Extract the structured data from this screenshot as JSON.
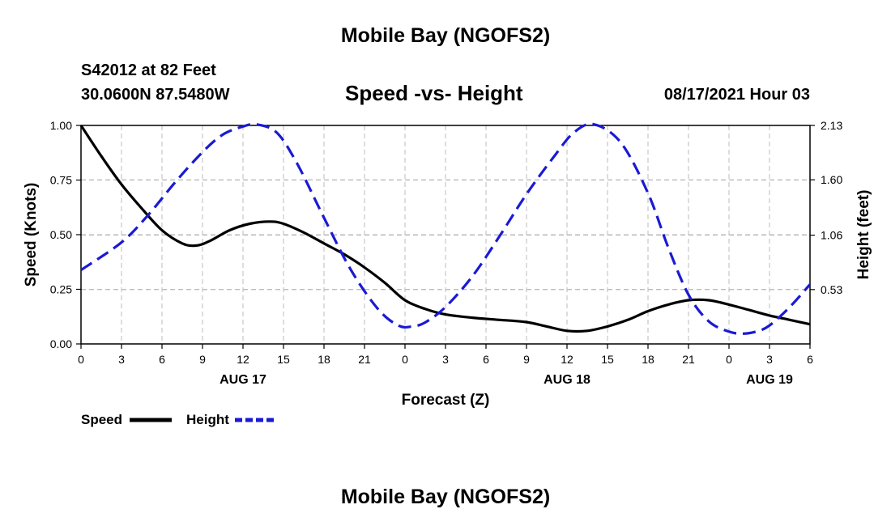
{
  "header": {
    "title": "Mobile Bay (NGOFS2)",
    "station": "S42012 at 82 Feet",
    "coords": "30.0600N  87.5480W",
    "subtitle": "Speed -vs- Height",
    "datetime": "08/17/2021 Hour 03"
  },
  "footer": {
    "title": "Mobile Bay (NGOFS2)"
  },
  "legend": {
    "speed_label": "Speed",
    "height_label": "Height"
  },
  "colors": {
    "speed": "#000000",
    "height": "#1a1ad4",
    "grid": "#bbbbbb"
  },
  "chart_data": {
    "type": "line",
    "title": "Speed -vs- Height",
    "xlabel": "Forecast (Z)",
    "ylabel": "Speed (Knots)",
    "y2label": "Height (feet)",
    "x_ticks": [
      0,
      3,
      6,
      9,
      12,
      15,
      18,
      21,
      24,
      27,
      30,
      33,
      36,
      39,
      42,
      45,
      48,
      51,
      54
    ],
    "x_tick_labels": [
      "0",
      "3",
      "6",
      "9",
      "12",
      "15",
      "18",
      "21",
      "0",
      "3",
      "6",
      "9",
      "12",
      "15",
      "18",
      "21",
      "0",
      "3",
      "6"
    ],
    "date_labels": [
      {
        "x": 12,
        "label": "AUG 17"
      },
      {
        "x": 36,
        "label": "AUG 18"
      },
      {
        "x": 51,
        "label": "AUG 19"
      }
    ],
    "xlim": [
      0,
      54
    ],
    "ylim": [
      0,
      1.0
    ],
    "y_ticks": [
      0,
      0.25,
      0.5,
      0.75,
      1.0
    ],
    "y_tick_labels": [
      "0.00",
      "0.25",
      "0.50",
      "0.75",
      "1.00"
    ],
    "y2lim": [
      0,
      2.13
    ],
    "y2_ticks": [
      0.53,
      1.06,
      1.6,
      2.13
    ],
    "y2_tick_labels": [
      "0.53",
      "1.06",
      "1.60",
      "2.13"
    ],
    "grid": true,
    "series": [
      {
        "name": "Speed",
        "axis": "left",
        "style": "solid",
        "x": [
          0,
          1.5,
          3,
          4.5,
          6,
          7.5,
          8.5,
          9.5,
          11,
          12.5,
          14,
          15,
          16.5,
          18,
          19.5,
          21,
          22.5,
          24,
          25.5,
          27,
          29,
          31,
          33,
          34.5,
          36,
          37.5,
          39,
          40.5,
          42,
          43.5,
          45,
          46.5,
          48,
          49.5,
          51,
          52.5,
          54
        ],
        "y": [
          1.0,
          0.86,
          0.73,
          0.62,
          0.52,
          0.46,
          0.45,
          0.47,
          0.52,
          0.55,
          0.56,
          0.55,
          0.51,
          0.46,
          0.41,
          0.35,
          0.28,
          0.2,
          0.16,
          0.135,
          0.12,
          0.11,
          0.1,
          0.08,
          0.06,
          0.06,
          0.08,
          0.11,
          0.15,
          0.18,
          0.2,
          0.2,
          0.18,
          0.155,
          0.13,
          0.11,
          0.09
        ]
      },
      {
        "name": "Height",
        "axis": "right",
        "style": "dashed",
        "x": [
          0,
          3,
          5,
          7,
          9,
          10.5,
          12,
          13,
          14.5,
          16,
          18,
          20,
          22,
          23.5,
          24.5,
          25.5,
          27,
          29,
          31,
          33,
          35,
          36.5,
          38,
          40,
          42,
          43.5,
          45,
          46.5,
          48,
          49,
          50,
          51,
          52.5,
          54
        ],
        "y": [
          0.72,
          0.99,
          1.26,
          1.58,
          1.87,
          2.04,
          2.12,
          2.14,
          2.06,
          1.76,
          1.23,
          0.72,
          0.34,
          0.18,
          0.17,
          0.21,
          0.36,
          0.66,
          1.05,
          1.46,
          1.82,
          2.06,
          2.14,
          1.96,
          1.47,
          0.94,
          0.48,
          0.22,
          0.12,
          0.1,
          0.12,
          0.18,
          0.36,
          0.58
        ]
      }
    ]
  }
}
